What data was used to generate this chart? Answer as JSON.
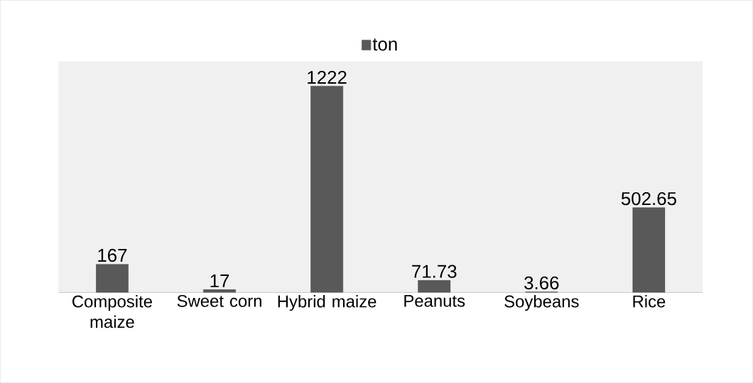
{
  "chart_data": {
    "type": "bar",
    "categories": [
      "Composite maize",
      "Sweet corn",
      "Hybrid maize",
      "Peanuts",
      "Soybeans",
      "Rice"
    ],
    "series": [
      {
        "name": "ton",
        "color": "#595959",
        "values": [
          167,
          17,
          1222,
          71.73,
          3.66,
          502.65
        ]
      }
    ],
    "data_labels": true,
    "legend": "top"
  }
}
